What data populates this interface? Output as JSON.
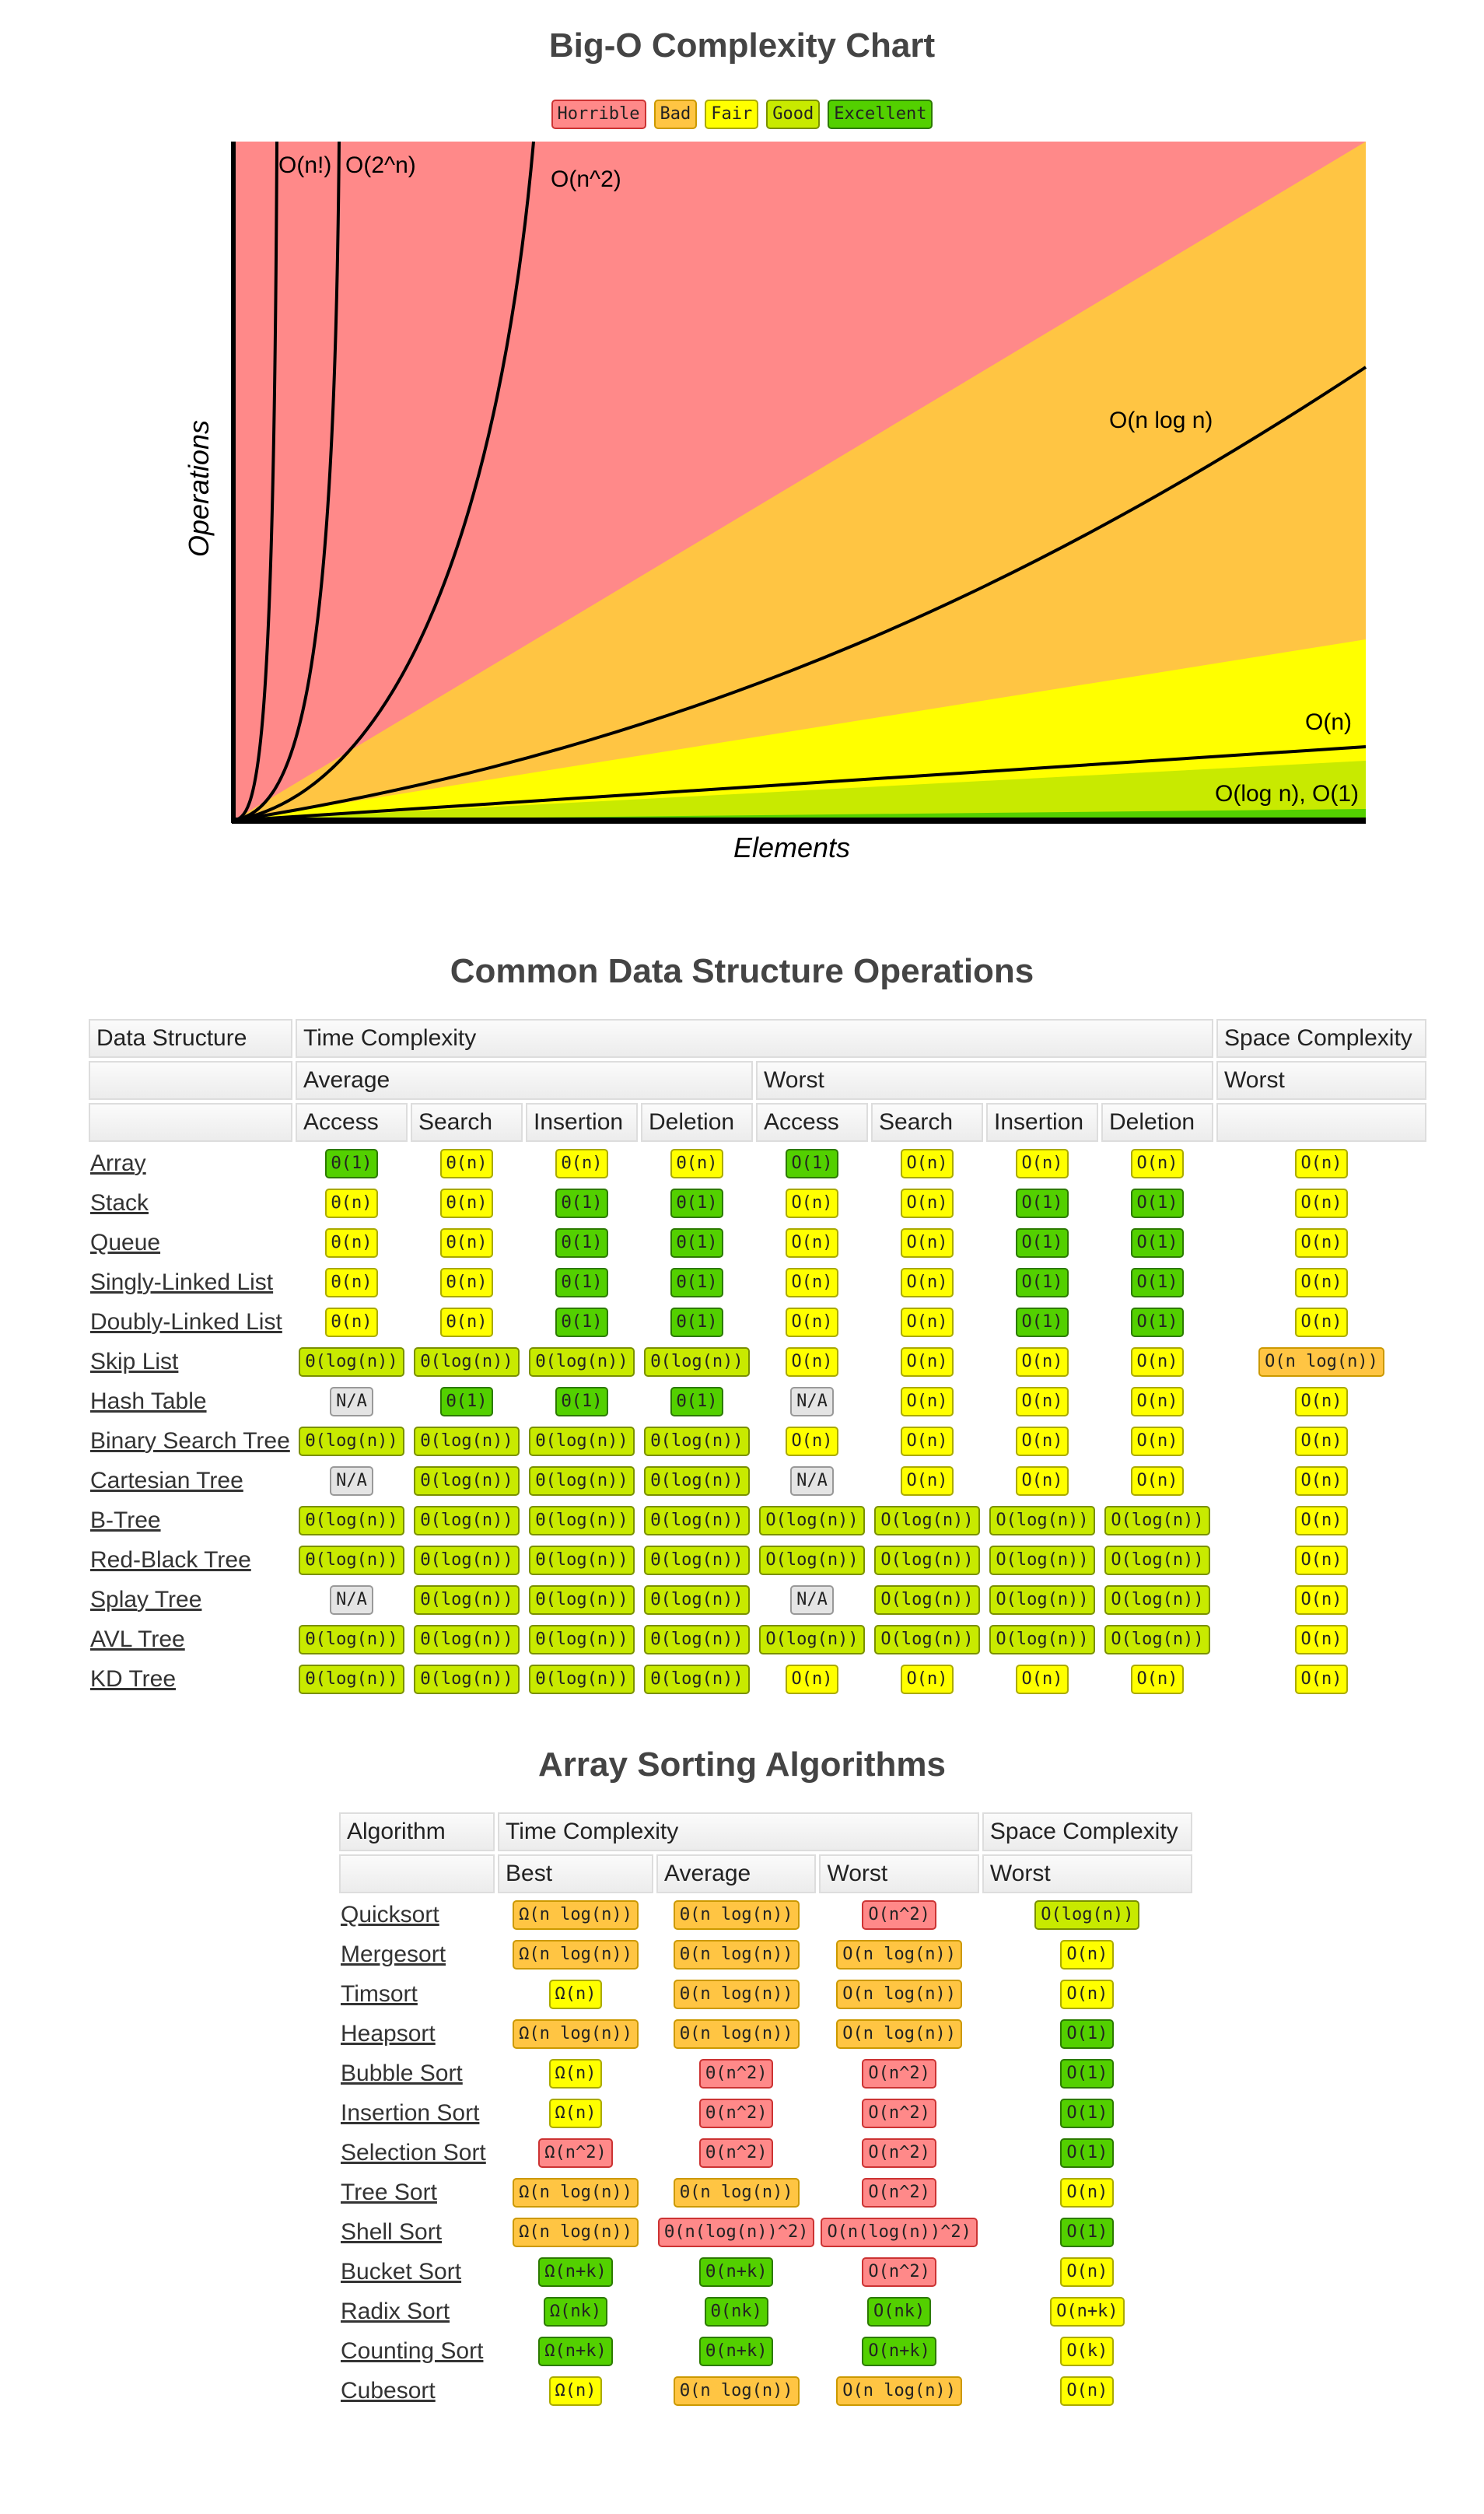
{
  "page_title": "Big-O Complexity Chart",
  "legend": [
    {
      "label": "Horrible",
      "class": "c-horrible"
    },
    {
      "label": "Bad",
      "class": "c-bad"
    },
    {
      "label": "Fair",
      "class": "c-fair"
    },
    {
      "label": "Good",
      "class": "c-good"
    },
    {
      "label": "Excellent",
      "class": "c-excellent"
    }
  ],
  "chart": {
    "xlabel": "Elements",
    "ylabel": "Operations",
    "curves": [
      "O(n!)",
      "O(2^n)",
      "O(n^2)",
      "O(n log n)",
      "O(n)",
      "O(log n), O(1)"
    ],
    "colors": {
      "horrible": "#ff8989",
      "bad": "#ffc543",
      "fair": "#ffff00",
      "good": "#c8ea00",
      "excellent": "#53d000"
    }
  },
  "ds": {
    "title": "Common Data Structure Operations",
    "h_data_structure": "Data Structure",
    "h_time": "Time Complexity",
    "h_space": "Space Complexity",
    "h_average": "Average",
    "h_worst": "Worst",
    "h_space_worst": "Worst",
    "cols": [
      "Access",
      "Search",
      "Insertion",
      "Deletion",
      "Access",
      "Search",
      "Insertion",
      "Deletion"
    ],
    "rows": [
      {
        "name": "Array",
        "cells": [
          [
            "Θ(1)",
            "c-excellent"
          ],
          [
            "Θ(n)",
            "c-fair"
          ],
          [
            "Θ(n)",
            "c-fair"
          ],
          [
            "Θ(n)",
            "c-fair"
          ],
          [
            "O(1)",
            "c-excellent"
          ],
          [
            "O(n)",
            "c-fair"
          ],
          [
            "O(n)",
            "c-fair"
          ],
          [
            "O(n)",
            "c-fair"
          ],
          [
            "O(n)",
            "c-fair"
          ]
        ]
      },
      {
        "name": "Stack",
        "cells": [
          [
            "Θ(n)",
            "c-fair"
          ],
          [
            "Θ(n)",
            "c-fair"
          ],
          [
            "Θ(1)",
            "c-excellent"
          ],
          [
            "Θ(1)",
            "c-excellent"
          ],
          [
            "O(n)",
            "c-fair"
          ],
          [
            "O(n)",
            "c-fair"
          ],
          [
            "O(1)",
            "c-excellent"
          ],
          [
            "O(1)",
            "c-excellent"
          ],
          [
            "O(n)",
            "c-fair"
          ]
        ]
      },
      {
        "name": "Queue",
        "cells": [
          [
            "Θ(n)",
            "c-fair"
          ],
          [
            "Θ(n)",
            "c-fair"
          ],
          [
            "Θ(1)",
            "c-excellent"
          ],
          [
            "Θ(1)",
            "c-excellent"
          ],
          [
            "O(n)",
            "c-fair"
          ],
          [
            "O(n)",
            "c-fair"
          ],
          [
            "O(1)",
            "c-excellent"
          ],
          [
            "O(1)",
            "c-excellent"
          ],
          [
            "O(n)",
            "c-fair"
          ]
        ]
      },
      {
        "name": "Singly-Linked List",
        "cells": [
          [
            "Θ(n)",
            "c-fair"
          ],
          [
            "Θ(n)",
            "c-fair"
          ],
          [
            "Θ(1)",
            "c-excellent"
          ],
          [
            "Θ(1)",
            "c-excellent"
          ],
          [
            "O(n)",
            "c-fair"
          ],
          [
            "O(n)",
            "c-fair"
          ],
          [
            "O(1)",
            "c-excellent"
          ],
          [
            "O(1)",
            "c-excellent"
          ],
          [
            "O(n)",
            "c-fair"
          ]
        ]
      },
      {
        "name": "Doubly-Linked List",
        "cells": [
          [
            "Θ(n)",
            "c-fair"
          ],
          [
            "Θ(n)",
            "c-fair"
          ],
          [
            "Θ(1)",
            "c-excellent"
          ],
          [
            "Θ(1)",
            "c-excellent"
          ],
          [
            "O(n)",
            "c-fair"
          ],
          [
            "O(n)",
            "c-fair"
          ],
          [
            "O(1)",
            "c-excellent"
          ],
          [
            "O(1)",
            "c-excellent"
          ],
          [
            "O(n)",
            "c-fair"
          ]
        ]
      },
      {
        "name": "Skip List",
        "cells": [
          [
            "Θ(log(n))",
            "c-good"
          ],
          [
            "Θ(log(n))",
            "c-good"
          ],
          [
            "Θ(log(n))",
            "c-good"
          ],
          [
            "Θ(log(n))",
            "c-good"
          ],
          [
            "O(n)",
            "c-fair"
          ],
          [
            "O(n)",
            "c-fair"
          ],
          [
            "O(n)",
            "c-fair"
          ],
          [
            "O(n)",
            "c-fair"
          ],
          [
            "O(n log(n))",
            "c-bad"
          ]
        ]
      },
      {
        "name": "Hash Table",
        "cells": [
          [
            "N/A",
            "c-na"
          ],
          [
            "Θ(1)",
            "c-excellent"
          ],
          [
            "Θ(1)",
            "c-excellent"
          ],
          [
            "Θ(1)",
            "c-excellent"
          ],
          [
            "N/A",
            "c-na"
          ],
          [
            "O(n)",
            "c-fair"
          ],
          [
            "O(n)",
            "c-fair"
          ],
          [
            "O(n)",
            "c-fair"
          ],
          [
            "O(n)",
            "c-fair"
          ]
        ]
      },
      {
        "name": "Binary Search Tree",
        "cells": [
          [
            "Θ(log(n))",
            "c-good"
          ],
          [
            "Θ(log(n))",
            "c-good"
          ],
          [
            "Θ(log(n))",
            "c-good"
          ],
          [
            "Θ(log(n))",
            "c-good"
          ],
          [
            "O(n)",
            "c-fair"
          ],
          [
            "O(n)",
            "c-fair"
          ],
          [
            "O(n)",
            "c-fair"
          ],
          [
            "O(n)",
            "c-fair"
          ],
          [
            "O(n)",
            "c-fair"
          ]
        ]
      },
      {
        "name": "Cartesian Tree",
        "cells": [
          [
            "N/A",
            "c-na"
          ],
          [
            "Θ(log(n))",
            "c-good"
          ],
          [
            "Θ(log(n))",
            "c-good"
          ],
          [
            "Θ(log(n))",
            "c-good"
          ],
          [
            "N/A",
            "c-na"
          ],
          [
            "O(n)",
            "c-fair"
          ],
          [
            "O(n)",
            "c-fair"
          ],
          [
            "O(n)",
            "c-fair"
          ],
          [
            "O(n)",
            "c-fair"
          ]
        ]
      },
      {
        "name": "B-Tree",
        "cells": [
          [
            "Θ(log(n))",
            "c-good"
          ],
          [
            "Θ(log(n))",
            "c-good"
          ],
          [
            "Θ(log(n))",
            "c-good"
          ],
          [
            "Θ(log(n))",
            "c-good"
          ],
          [
            "O(log(n))",
            "c-good"
          ],
          [
            "O(log(n))",
            "c-good"
          ],
          [
            "O(log(n))",
            "c-good"
          ],
          [
            "O(log(n))",
            "c-good"
          ],
          [
            "O(n)",
            "c-fair"
          ]
        ]
      },
      {
        "name": "Red-Black Tree",
        "cells": [
          [
            "Θ(log(n))",
            "c-good"
          ],
          [
            "Θ(log(n))",
            "c-good"
          ],
          [
            "Θ(log(n))",
            "c-good"
          ],
          [
            "Θ(log(n))",
            "c-good"
          ],
          [
            "O(log(n))",
            "c-good"
          ],
          [
            "O(log(n))",
            "c-good"
          ],
          [
            "O(log(n))",
            "c-good"
          ],
          [
            "O(log(n))",
            "c-good"
          ],
          [
            "O(n)",
            "c-fair"
          ]
        ]
      },
      {
        "name": "Splay Tree",
        "cells": [
          [
            "N/A",
            "c-na"
          ],
          [
            "Θ(log(n))",
            "c-good"
          ],
          [
            "Θ(log(n))",
            "c-good"
          ],
          [
            "Θ(log(n))",
            "c-good"
          ],
          [
            "N/A",
            "c-na"
          ],
          [
            "O(log(n))",
            "c-good"
          ],
          [
            "O(log(n))",
            "c-good"
          ],
          [
            "O(log(n))",
            "c-good"
          ],
          [
            "O(n)",
            "c-fair"
          ]
        ]
      },
      {
        "name": "AVL Tree",
        "cells": [
          [
            "Θ(log(n))",
            "c-good"
          ],
          [
            "Θ(log(n))",
            "c-good"
          ],
          [
            "Θ(log(n))",
            "c-good"
          ],
          [
            "Θ(log(n))",
            "c-good"
          ],
          [
            "O(log(n))",
            "c-good"
          ],
          [
            "O(log(n))",
            "c-good"
          ],
          [
            "O(log(n))",
            "c-good"
          ],
          [
            "O(log(n))",
            "c-good"
          ],
          [
            "O(n)",
            "c-fair"
          ]
        ]
      },
      {
        "name": "KD Tree",
        "cells": [
          [
            "Θ(log(n))",
            "c-good"
          ],
          [
            "Θ(log(n))",
            "c-good"
          ],
          [
            "Θ(log(n))",
            "c-good"
          ],
          [
            "Θ(log(n))",
            "c-good"
          ],
          [
            "O(n)",
            "c-fair"
          ],
          [
            "O(n)",
            "c-fair"
          ],
          [
            "O(n)",
            "c-fair"
          ],
          [
            "O(n)",
            "c-fair"
          ],
          [
            "O(n)",
            "c-fair"
          ]
        ]
      }
    ]
  },
  "sort": {
    "title": "Array Sorting Algorithms",
    "h_algorithm": "Algorithm",
    "h_time": "Time Complexity",
    "h_space": "Space Complexity",
    "cols": [
      "Best",
      "Average",
      "Worst"
    ],
    "h_space_worst": "Worst",
    "rows": [
      {
        "name": "Quicksort",
        "cells": [
          [
            "Ω(n log(n))",
            "c-bad"
          ],
          [
            "Θ(n log(n))",
            "c-bad"
          ],
          [
            "O(n^2)",
            "c-horrible"
          ],
          [
            "O(log(n))",
            "c-good"
          ]
        ]
      },
      {
        "name": "Mergesort",
        "cells": [
          [
            "Ω(n log(n))",
            "c-bad"
          ],
          [
            "Θ(n log(n))",
            "c-bad"
          ],
          [
            "O(n log(n))",
            "c-bad"
          ],
          [
            "O(n)",
            "c-fair"
          ]
        ]
      },
      {
        "name": "Timsort",
        "cells": [
          [
            "Ω(n)",
            "c-fair"
          ],
          [
            "Θ(n log(n))",
            "c-bad"
          ],
          [
            "O(n log(n))",
            "c-bad"
          ],
          [
            "O(n)",
            "c-fair"
          ]
        ]
      },
      {
        "name": "Heapsort",
        "cells": [
          [
            "Ω(n log(n))",
            "c-bad"
          ],
          [
            "Θ(n log(n))",
            "c-bad"
          ],
          [
            "O(n log(n))",
            "c-bad"
          ],
          [
            "O(1)",
            "c-excellent"
          ]
        ]
      },
      {
        "name": "Bubble Sort",
        "cells": [
          [
            "Ω(n)",
            "c-fair"
          ],
          [
            "Θ(n^2)",
            "c-horrible"
          ],
          [
            "O(n^2)",
            "c-horrible"
          ],
          [
            "O(1)",
            "c-excellent"
          ]
        ]
      },
      {
        "name": "Insertion Sort",
        "cells": [
          [
            "Ω(n)",
            "c-fair"
          ],
          [
            "Θ(n^2)",
            "c-horrible"
          ],
          [
            "O(n^2)",
            "c-horrible"
          ],
          [
            "O(1)",
            "c-excellent"
          ]
        ]
      },
      {
        "name": "Selection Sort",
        "cells": [
          [
            "Ω(n^2)",
            "c-horrible"
          ],
          [
            "Θ(n^2)",
            "c-horrible"
          ],
          [
            "O(n^2)",
            "c-horrible"
          ],
          [
            "O(1)",
            "c-excellent"
          ]
        ]
      },
      {
        "name": "Tree Sort",
        "cells": [
          [
            "Ω(n log(n))",
            "c-bad"
          ],
          [
            "Θ(n log(n))",
            "c-bad"
          ],
          [
            "O(n^2)",
            "c-horrible"
          ],
          [
            "O(n)",
            "c-fair"
          ]
        ]
      },
      {
        "name": "Shell Sort",
        "cells": [
          [
            "Ω(n log(n))",
            "c-bad"
          ],
          [
            "Θ(n(log(n))^2)",
            "c-horrible"
          ],
          [
            "O(n(log(n))^2)",
            "c-horrible"
          ],
          [
            "O(1)",
            "c-excellent"
          ]
        ]
      },
      {
        "name": "Bucket Sort",
        "cells": [
          [
            "Ω(n+k)",
            "c-excellent"
          ],
          [
            "Θ(n+k)",
            "c-excellent"
          ],
          [
            "O(n^2)",
            "c-horrible"
          ],
          [
            "O(n)",
            "c-fair"
          ]
        ]
      },
      {
        "name": "Radix Sort",
        "cells": [
          [
            "Ω(nk)",
            "c-excellent"
          ],
          [
            "Θ(nk)",
            "c-excellent"
          ],
          [
            "O(nk)",
            "c-excellent"
          ],
          [
            "O(n+k)",
            "c-fair"
          ]
        ]
      },
      {
        "name": "Counting Sort",
        "cells": [
          [
            "Ω(n+k)",
            "c-excellent"
          ],
          [
            "Θ(n+k)",
            "c-excellent"
          ],
          [
            "O(n+k)",
            "c-excellent"
          ],
          [
            "O(k)",
            "c-fair"
          ]
        ]
      },
      {
        "name": "Cubesort",
        "cells": [
          [
            "Ω(n)",
            "c-fair"
          ],
          [
            "Θ(n log(n))",
            "c-bad"
          ],
          [
            "O(n log(n))",
            "c-bad"
          ],
          [
            "O(n)",
            "c-fair"
          ]
        ]
      }
    ]
  }
}
